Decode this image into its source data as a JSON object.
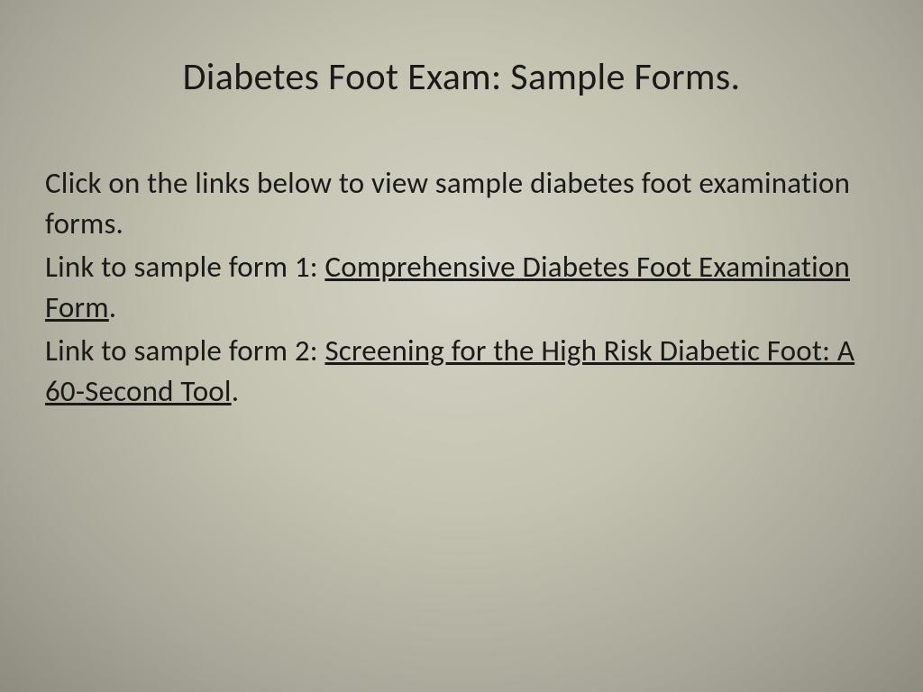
{
  "slide": {
    "title": "Diabetes Foot Exam: Sample Forms.",
    "intro": "Click on the links below to view sample diabetes foot examination forms.",
    "link1_prefix": "Link to sample form 1: ",
    "link1_text": "Comprehensive Diabetes Foot Examination Form",
    "link1_suffix": ".",
    "link2_prefix": "Link to sample form 2: ",
    "link2_text": "Screening for the High Risk Diabetic Foot: A 60-Second Tool",
    "link2_suffix": "."
  },
  "styling": {
    "background_gradient_center": "#d4d2c4",
    "background_gradient_mid": "#c4c2b0",
    "background_gradient_edge": "#8e8c7e",
    "text_color": "#1a1a1a",
    "title_fontsize": 42,
    "body_fontsize": 33,
    "font_family": "Calibri"
  }
}
